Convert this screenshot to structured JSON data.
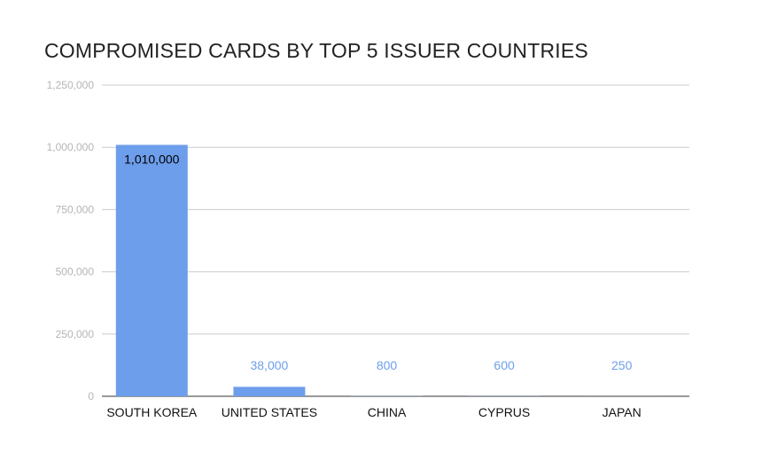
{
  "chart_data": {
    "type": "bar",
    "title": "COMPROMISED CARDS BY TOP 5 ISSUER COUNTRIES",
    "xlabel": "",
    "ylabel": "",
    "categories": [
      "SOUTH KOREA",
      "UNITED STATES",
      "CHINA",
      "CYPRUS",
      "JAPAN"
    ],
    "values": [
      1010000,
      38000,
      800,
      600,
      250
    ],
    "data_labels": [
      "1,010,000",
      "38,000",
      "800",
      "600",
      "250"
    ],
    "ylim": [
      0,
      1250000
    ],
    "yticks": [
      0,
      250000,
      500000,
      750000,
      1000000,
      1250000
    ],
    "ytick_labels": [
      "0",
      "250,000",
      "500,000",
      "750,000",
      "1,000,000",
      "1,250,000"
    ],
    "grid": true,
    "legend": "none",
    "colors": {
      "bar": "#6d9eeb",
      "grid": "#cccccc",
      "tick_text": "#b5b5b5",
      "label_inside": "#000000",
      "label_outside": "#6d9eeb"
    }
  }
}
